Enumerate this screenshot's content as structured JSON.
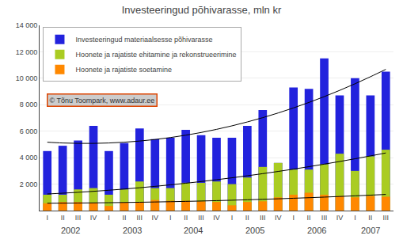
{
  "chart_data": {
    "type": "bar",
    "title": "Investeeringud põhivarasse, mln kr",
    "categories": [
      "I",
      "II",
      "III",
      "IV",
      "I",
      "II",
      "III",
      "IV",
      "I",
      "II",
      "III",
      "IV",
      "I",
      "II",
      "III",
      "IV",
      "I",
      "II",
      "III",
      "IV",
      "I",
      "II",
      "III"
    ],
    "series": [
      {
        "name": "Investeeringud materiaalsesse põhivarasse",
        "color": "#2222dd",
        "values": [
          4500,
          4900,
          5300,
          6400,
          4500,
          5100,
          6200,
          5400,
          5500,
          6100,
          5700,
          5500,
          5500,
          6400,
          7600,
          3600,
          9300,
          9200,
          11500,
          8700,
          10000,
          8700,
          10500
        ]
      },
      {
        "name": "Hoonete ja rajatiste ehitamine ja rekonstrueerimine",
        "color": "#aacc22",
        "values": [
          1200,
          1200,
          1600,
          1700,
          1200,
          1600,
          2200,
          1700,
          1700,
          2100,
          2100,
          2200,
          2000,
          2500,
          3300,
          3600,
          3100,
          3100,
          3500,
          4300,
          3000,
          4100,
          4600
        ]
      },
      {
        "name": "Hoonete ja rajatiste soetamine",
        "color": "#ff8800",
        "values": [
          550,
          650,
          650,
          600,
          350,
          600,
          650,
          800,
          750,
          750,
          700,
          650,
          400,
          650,
          700,
          1000,
          1200,
          1350,
          1200,
          1100,
          1000,
          1100,
          1050
        ]
      },
      {
        "type": "line",
        "color": "#000000",
        "values": [
          5167.83,
          5108.82,
          5079.26,
          5079.16,
          5108.53,
          5167.35,
          5255.62,
          5373.36,
          5520.55,
          5697.21,
          5903.32,
          6138.88,
          6403.91,
          6698.39,
          7022.33,
          7375.73,
          7758.59,
          8170.9,
          8612.68,
          9083.91,
          9584.6,
          10114.74,
          10674.35
        ]
      },
      {
        "type": "line",
        "color": "#000000",
        "values": [
          1256.09,
          1314.9,
          1381.52,
          1455.96,
          1538.2,
          1628.25,
          1726.11,
          1831.78,
          1945.26,
          2066.54,
          2195.64,
          2332.55,
          2477.26,
          2629.79,
          2790.12,
          2958.26,
          3134.21,
          3317.97,
          3509.54,
          3708.92,
          3916.11,
          4131.11,
          4353.91
        ]
      },
      {
        "type": "line",
        "color": "#000000",
        "values": [
          558.04,
          564.35,
          572.92,
          583.77,
          596.88,
          612.26,
          629.92,
          649.84,
          672.04,
          696.5,
          723.23,
          752.24,
          783.51,
          817.05,
          852.87,
          890.95,
          931.3,
          973.92,
          1018.82,
          1065.99,
          1115.43,
          1167.14,
          1221.09
        ]
      }
    ],
    "annotations": [
      {
        "text": "2002",
        "x": 1.5
      },
      {
        "text": "2003",
        "x": 5.5
      },
      {
        "text": "2004",
        "x": 9.5
      },
      {
        "text": "2005",
        "x": 13.5
      },
      {
        "text": "2006",
        "x": 17.5
      },
      {
        "text": "2007",
        "x": 21.0
      },
      {
        "text": "© Tõnu Toompark, www.adaur.ee"
      }
    ],
    "ylim": [
      0,
      14000
    ],
    "yticks": [
      {
        "value": 2000,
        "label": "2 000"
      },
      {
        "value": 4000,
        "label": "4 000"
      },
      {
        "value": 6000,
        "label": "6 000"
      },
      {
        "value": 8000,
        "label": "8 000"
      },
      {
        "value": 10000,
        "label": "10 000"
      },
      {
        "value": 12000,
        "label": "12 000"
      },
      {
        "value": 14000,
        "label": "14 000"
      }
    ],
    "grid": true,
    "legend": "upper left"
  }
}
